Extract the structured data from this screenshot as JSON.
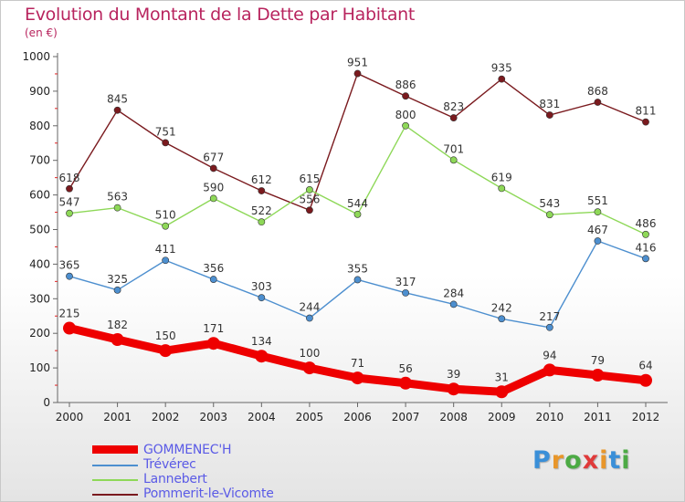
{
  "title": "Evolution du Montant de la Dette par Habitant",
  "subtitle": "(en €)",
  "logo": {
    "text": "Proxiti",
    "letter_colors": [
      "#3a8fd8",
      "#e8962a",
      "#4caa44",
      "#e03a3a",
      "#e8962a",
      "#3a8fd8",
      "#4caa44"
    ]
  },
  "chart_data": {
    "type": "line",
    "x": [
      "2000",
      "2001",
      "2002",
      "2003",
      "2004",
      "2005",
      "2006",
      "2007",
      "2008",
      "2009",
      "2010",
      "2011",
      "2012"
    ],
    "ylim": [
      0,
      1000
    ],
    "yticks": [
      "0",
      "100",
      "200",
      "300",
      "400",
      "500",
      "600",
      "700",
      "800",
      "900",
      "1000"
    ],
    "grid": false,
    "legend_position": "bottom-left",
    "series": [
      {
        "name": "Pommerit-le-Vicomte",
        "color": "#7a1a1e",
        "values": [
          618,
          845,
          751,
          677,
          612,
          556,
          951,
          886,
          823,
          935,
          831,
          868,
          811
        ],
        "labels": [
          "618",
          "845",
          "751",
          "677",
          "612",
          "556",
          "951",
          "886",
          "823",
          "935",
          "831",
          "868",
          "811"
        ]
      },
      {
        "name": "Lannebert",
        "color": "#8ed858",
        "values": [
          547,
          563,
          510,
          590,
          522,
          615,
          544,
          800,
          701,
          619,
          543,
          551,
          486
        ],
        "labels": [
          "547",
          "563",
          "510",
          "590",
          "522",
          "615",
          "544",
          "800",
          "701",
          "619",
          "543",
          "551",
          "486"
        ]
      },
      {
        "name": "Trévérec",
        "color": "#4d8fcf",
        "values": [
          365,
          325,
          411,
          356,
          303,
          244,
          355,
          317,
          284,
          242,
          217,
          467,
          416
        ],
        "labels": [
          "365",
          "325",
          "411",
          "356",
          "303",
          "244",
          "355",
          "317",
          "284",
          "242",
          "217",
          "467",
          "416"
        ]
      },
      {
        "name": "GOMMENEC'H",
        "color": "#ee0000",
        "values": [
          215,
          182,
          150,
          171,
          134,
          100,
          71,
          56,
          39,
          31,
          94,
          79,
          64
        ],
        "labels": [
          "215",
          "182",
          "150",
          "171",
          "134",
          "100",
          "71",
          "56",
          "39",
          "31",
          "94",
          "79",
          "64"
        ]
      }
    ],
    "legend": [
      "GOMMENEC'H",
      "Trévérec",
      "Lannebert",
      "Pommerit-le-Vicomte"
    ]
  }
}
